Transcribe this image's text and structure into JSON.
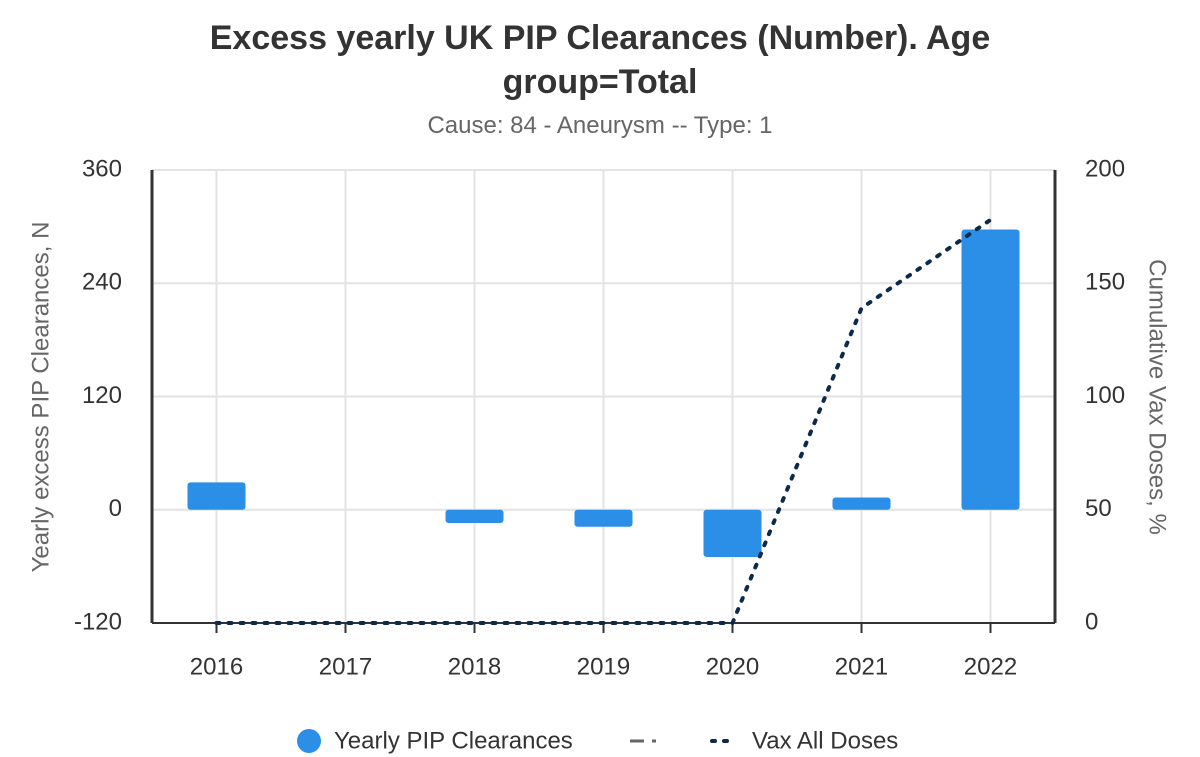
{
  "chart_data": {
    "type": "bar",
    "title": "Excess yearly UK PIP Clearances (Number). Age group=Total",
    "subtitle": "Cause: 84 - Aneurysm -- Type: 1",
    "ylabel": "Yearly excess PIP Clearances, N",
    "y2label": "Cumulative Vax Doses, %",
    "categories": [
      "2016",
      "2017",
      "2018",
      "2019",
      "2020",
      "2021",
      "2022"
    ],
    "series": [
      {
        "name": "Yearly PIP Clearances",
        "type": "bar",
        "color": "#2b8fe8",
        "values": [
          29,
          0,
          -14,
          -18,
          -50,
          13,
          297
        ]
      },
      {
        "name": "Vax All Doses",
        "type": "line",
        "axis": "y2",
        "color": "#0d2a4a",
        "values": [
          0,
          0,
          0,
          0,
          0,
          139,
          178
        ]
      }
    ],
    "ylim": [
      -120,
      360
    ],
    "yticks": [
      -120,
      0,
      120,
      240,
      360
    ],
    "y2lim": [
      0,
      200
    ],
    "y2ticks": [
      0,
      50,
      100,
      150,
      200
    ],
    "grid": true,
    "legend": "bottom"
  }
}
